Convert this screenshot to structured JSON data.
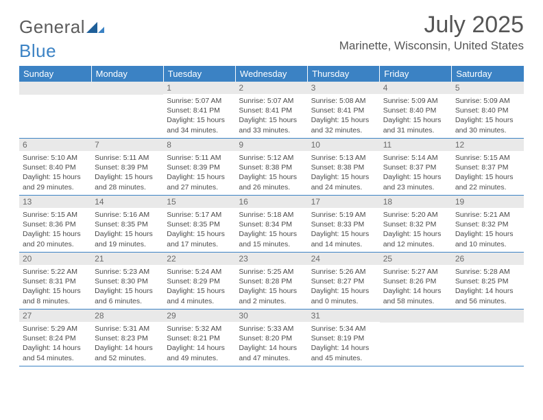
{
  "logo": {
    "word1": "General",
    "word2": "Blue"
  },
  "title": "July 2025",
  "location": "Marinette, Wisconsin, United States",
  "colors": {
    "header_bg": "#3b82c4",
    "header_text": "#ffffff",
    "daynum_bg": "#e9e9e9",
    "daynum_text": "#6a6a6a",
    "body_text": "#4a4a4a",
    "rule": "#3b82c4",
    "logo_gray": "#5c5c5c",
    "logo_blue": "#3b82c4"
  },
  "weekdays": [
    "Sunday",
    "Monday",
    "Tuesday",
    "Wednesday",
    "Thursday",
    "Friday",
    "Saturday"
  ],
  "weeks": [
    [
      null,
      null,
      {
        "n": "1",
        "sr": "5:07 AM",
        "ss": "8:41 PM",
        "dl": "15 hours and 34 minutes."
      },
      {
        "n": "2",
        "sr": "5:07 AM",
        "ss": "8:41 PM",
        "dl": "15 hours and 33 minutes."
      },
      {
        "n": "3",
        "sr": "5:08 AM",
        "ss": "8:41 PM",
        "dl": "15 hours and 32 minutes."
      },
      {
        "n": "4",
        "sr": "5:09 AM",
        "ss": "8:40 PM",
        "dl": "15 hours and 31 minutes."
      },
      {
        "n": "5",
        "sr": "5:09 AM",
        "ss": "8:40 PM",
        "dl": "15 hours and 30 minutes."
      }
    ],
    [
      {
        "n": "6",
        "sr": "5:10 AM",
        "ss": "8:40 PM",
        "dl": "15 hours and 29 minutes."
      },
      {
        "n": "7",
        "sr": "5:11 AM",
        "ss": "8:39 PM",
        "dl": "15 hours and 28 minutes."
      },
      {
        "n": "8",
        "sr": "5:11 AM",
        "ss": "8:39 PM",
        "dl": "15 hours and 27 minutes."
      },
      {
        "n": "9",
        "sr": "5:12 AM",
        "ss": "8:38 PM",
        "dl": "15 hours and 26 minutes."
      },
      {
        "n": "10",
        "sr": "5:13 AM",
        "ss": "8:38 PM",
        "dl": "15 hours and 24 minutes."
      },
      {
        "n": "11",
        "sr": "5:14 AM",
        "ss": "8:37 PM",
        "dl": "15 hours and 23 minutes."
      },
      {
        "n": "12",
        "sr": "5:15 AM",
        "ss": "8:37 PM",
        "dl": "15 hours and 22 minutes."
      }
    ],
    [
      {
        "n": "13",
        "sr": "5:15 AM",
        "ss": "8:36 PM",
        "dl": "15 hours and 20 minutes."
      },
      {
        "n": "14",
        "sr": "5:16 AM",
        "ss": "8:35 PM",
        "dl": "15 hours and 19 minutes."
      },
      {
        "n": "15",
        "sr": "5:17 AM",
        "ss": "8:35 PM",
        "dl": "15 hours and 17 minutes."
      },
      {
        "n": "16",
        "sr": "5:18 AM",
        "ss": "8:34 PM",
        "dl": "15 hours and 15 minutes."
      },
      {
        "n": "17",
        "sr": "5:19 AM",
        "ss": "8:33 PM",
        "dl": "15 hours and 14 minutes."
      },
      {
        "n": "18",
        "sr": "5:20 AM",
        "ss": "8:32 PM",
        "dl": "15 hours and 12 minutes."
      },
      {
        "n": "19",
        "sr": "5:21 AM",
        "ss": "8:32 PM",
        "dl": "15 hours and 10 minutes."
      }
    ],
    [
      {
        "n": "20",
        "sr": "5:22 AM",
        "ss": "8:31 PM",
        "dl": "15 hours and 8 minutes."
      },
      {
        "n": "21",
        "sr": "5:23 AM",
        "ss": "8:30 PM",
        "dl": "15 hours and 6 minutes."
      },
      {
        "n": "22",
        "sr": "5:24 AM",
        "ss": "8:29 PM",
        "dl": "15 hours and 4 minutes."
      },
      {
        "n": "23",
        "sr": "5:25 AM",
        "ss": "8:28 PM",
        "dl": "15 hours and 2 minutes."
      },
      {
        "n": "24",
        "sr": "5:26 AM",
        "ss": "8:27 PM",
        "dl": "15 hours and 0 minutes."
      },
      {
        "n": "25",
        "sr": "5:27 AM",
        "ss": "8:26 PM",
        "dl": "14 hours and 58 minutes."
      },
      {
        "n": "26",
        "sr": "5:28 AM",
        "ss": "8:25 PM",
        "dl": "14 hours and 56 minutes."
      }
    ],
    [
      {
        "n": "27",
        "sr": "5:29 AM",
        "ss": "8:24 PM",
        "dl": "14 hours and 54 minutes."
      },
      {
        "n": "28",
        "sr": "5:31 AM",
        "ss": "8:23 PM",
        "dl": "14 hours and 52 minutes."
      },
      {
        "n": "29",
        "sr": "5:32 AM",
        "ss": "8:21 PM",
        "dl": "14 hours and 49 minutes."
      },
      {
        "n": "30",
        "sr": "5:33 AM",
        "ss": "8:20 PM",
        "dl": "14 hours and 47 minutes."
      },
      {
        "n": "31",
        "sr": "5:34 AM",
        "ss": "8:19 PM",
        "dl": "14 hours and 45 minutes."
      },
      null,
      null
    ]
  ],
  "labels": {
    "sunrise": "Sunrise: ",
    "sunset": "Sunset: ",
    "daylight": "Daylight: "
  }
}
